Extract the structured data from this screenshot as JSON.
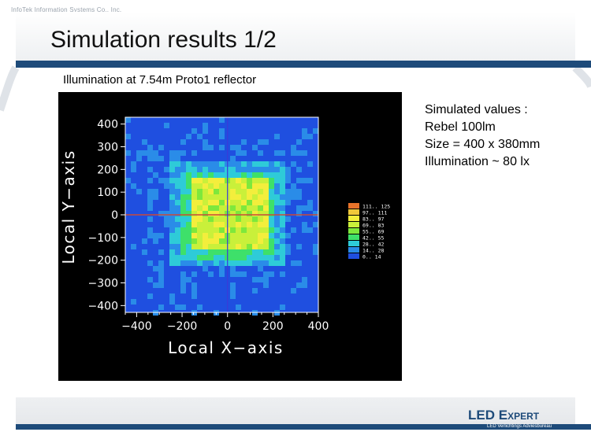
{
  "header": {
    "company_tag": "InfoTek Information Systems Co., Inc.",
    "title": "Simulation results 1/2"
  },
  "subtitle": "Illumination at 7.54m Proto1 reflector",
  "notes": {
    "lines": [
      "Simulated values :",
      "Rebel 100lm",
      "Size = 400 x 380mm",
      "Illumination ~ 80 lx"
    ]
  },
  "footer": {
    "logo_led": "LED",
    "logo_expert": "Expert",
    "logo_tagline": "LED Verlichtings Adviesbureau"
  },
  "colors": {
    "accent": "#1e4b7a",
    "crosshair": "#c84a3a"
  },
  "chart_data": {
    "type": "heatmap",
    "xlabel": "Local X−axis",
    "ylabel": "Local Y−axis",
    "xlim": [
      -450,
      400
    ],
    "ylim": [
      -430,
      430
    ],
    "xticks": [
      -400,
      -200,
      0,
      200,
      400
    ],
    "xtick_labels": [
      "−400",
      "−200",
      "0",
      "200",
      "400"
    ],
    "yticks": [
      400,
      300,
      200,
      100,
      0,
      -100,
      -200,
      -300,
      -400
    ],
    "ytick_labels": [
      "400",
      "300",
      "200",
      "100",
      "0",
      "−100",
      "−200",
      "−300",
      "−400"
    ],
    "spot": {
      "x_range": [
        -200,
        200
      ],
      "y_range": [
        -190,
        190
      ],
      "peak_lux": 97,
      "typical_lux": 80
    },
    "legend": {
      "placement": "right",
      "bins": [
        {
          "label": "111.. 125",
          "color": "#e8732a"
        },
        {
          "label": "97.. 111",
          "color": "#f0c83a"
        },
        {
          "label": "83.. 97",
          "color": "#f3ee3c"
        },
        {
          "label": "69.. 83",
          "color": "#c9f03a"
        },
        {
          "label": "55.. 69",
          "color": "#7ee83c"
        },
        {
          "label": "42.. 55",
          "color": "#3ee06a"
        },
        {
          "label": "28.. 42",
          "color": "#2ecbd8"
        },
        {
          "label": "14.. 28",
          "color": "#2a8ce8"
        },
        {
          "label": "0.. 14",
          "color": "#1f4fe0"
        }
      ]
    }
  }
}
